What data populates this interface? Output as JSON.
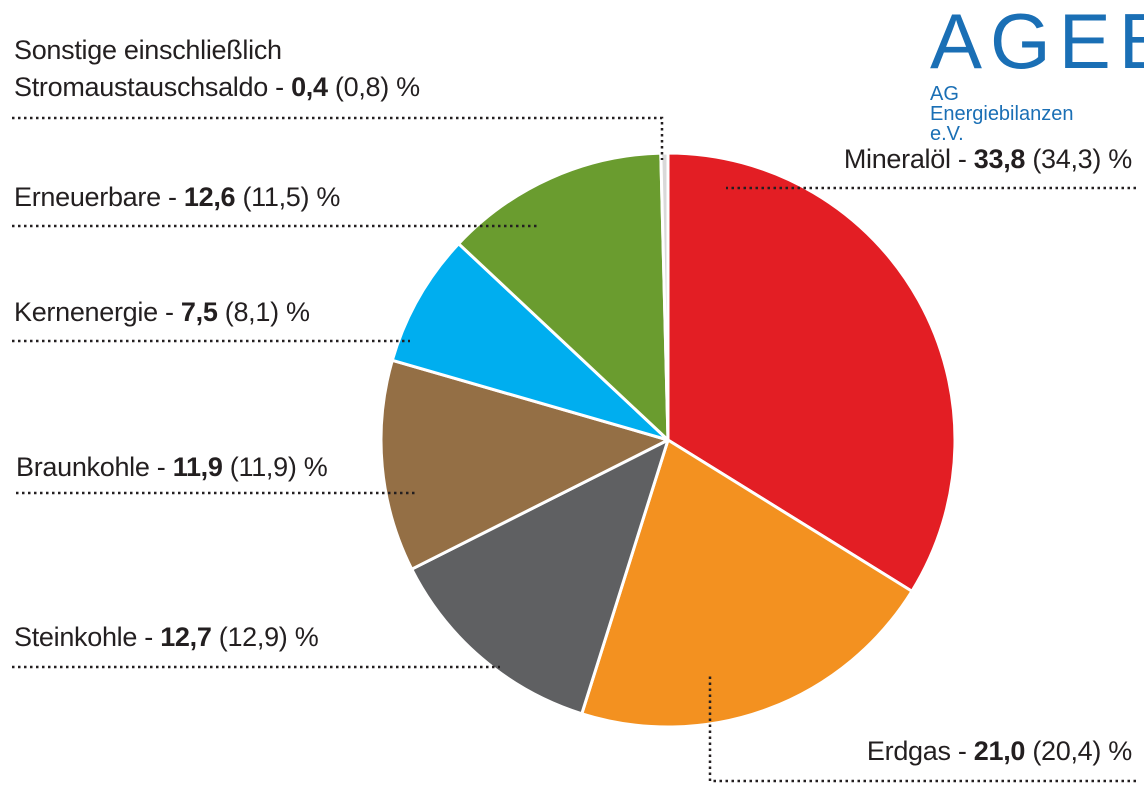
{
  "logo": {
    "name": "AGEB",
    "subtitle": "AG Energiebilanzen e.V."
  },
  "chart_data": {
    "type": "pie",
    "unit": "%",
    "slices": [
      {
        "label": "Mineralöl",
        "value": 33.8,
        "value_text": "33,8",
        "prev_text": "(34,3)",
        "color": "#e31e24"
      },
      {
        "label": "Erdgas",
        "value": 21.0,
        "value_text": "21,0",
        "prev_text": "(20,4)",
        "color": "#f39120"
      },
      {
        "label": "Steinkohle",
        "value": 12.7,
        "value_text": "12,7",
        "prev_text": "(12,9)",
        "color": "#5f6062"
      },
      {
        "label": "Braunkohle",
        "value": 11.9,
        "value_text": "11,9",
        "prev_text": "(11,9)",
        "color": "#946f45"
      },
      {
        "label": "Kernenergie",
        "value": 7.5,
        "value_text": "7,5",
        "prev_text": "(8,1)",
        "color": "#00aeef"
      },
      {
        "label": "Erneuerbare",
        "value": 12.6,
        "value_text": "12,6",
        "prev_text": "(11,5)",
        "color": "#6a9c2f"
      },
      {
        "label": "Sonstige einschließlich Stromaustauschsaldo",
        "label_line1": "Sonstige einschließlich",
        "label_line2": "Stromaustauschsaldo",
        "value": 0.4,
        "value_text": "0,4",
        "prev_text": "(0,8)",
        "color": "#d9d9d9"
      }
    ]
  }
}
